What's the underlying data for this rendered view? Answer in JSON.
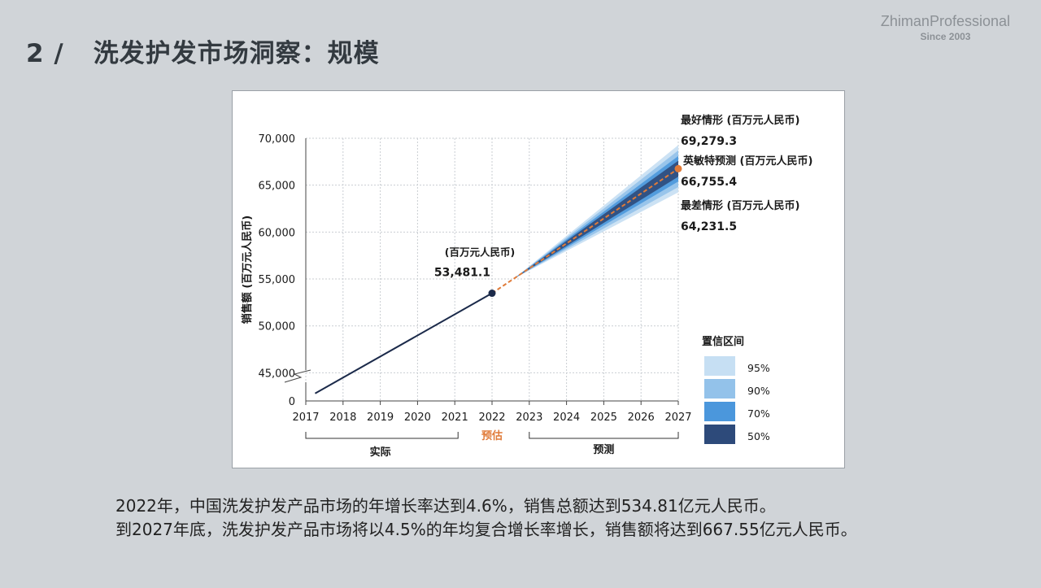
{
  "header": {
    "section_number": "2 /",
    "title": "洗发护发市场洞察：规模"
  },
  "brand": {
    "name": "ZhimanProfessional",
    "since": "Since 2003"
  },
  "chart_data": {
    "type": "line",
    "ylabel": "销售额 (百万元人民币)",
    "x": [
      2017,
      2018,
      2019,
      2020,
      2021,
      2022,
      2023,
      2024,
      2025,
      2026,
      2027
    ],
    "x_tick_labels": [
      "2017",
      "2018",
      "2019",
      "2020",
      "2021",
      "2022",
      "2023",
      "2024",
      "2025",
      "2026",
      "2027"
    ],
    "y_tick_labels": [
      "70,000",
      "65,000",
      "60,000",
      "55,000",
      "50,000",
      "45,000",
      "0"
    ],
    "y_ticks": [
      70000,
      65000,
      60000,
      55000,
      50000,
      45000
    ],
    "y_zero_label": "0",
    "ylim": [
      42000,
      70000
    ],
    "axis_break": true,
    "series": [
      {
        "role": "actual",
        "color": "#1b2a4a",
        "x": [
          2017.25,
          2022
        ],
        "y": [
          42800,
          53481.1
        ]
      },
      {
        "role": "forecast",
        "color": "#e07b39",
        "x": [
          2022,
          2027
        ],
        "y": [
          53481.1,
          66755.4
        ]
      }
    ],
    "confidence_interval": {
      "title": "置信区间",
      "levels": [
        {
          "label": "95%",
          "color": "#c6dff3",
          "lower_2027": 64231.5,
          "upper_2027": 69279.3
        },
        {
          "label": "90%",
          "color": "#93c2ea",
          "lower_2027": 64800,
          "upper_2027": 68700
        },
        {
          "label": "70%",
          "color": "#4b97dc",
          "lower_2027": 65400,
          "upper_2027": 68100
        },
        {
          "label": "50%",
          "color": "#2d4a7a",
          "lower_2027": 65900,
          "upper_2027": 67600
        }
      ],
      "start_x": 2022.6
    },
    "annotations": {
      "point_2022": {
        "unit": "(百万元人民币)",
        "value": "53,481.1"
      },
      "best": {
        "label": "最好情形 (百万元人民币)",
        "value": "69,279.3"
      },
      "forecast": {
        "label": "英敏特预测 (百万元人民币)",
        "value": "66,755.4"
      },
      "worst": {
        "label": "最差情形 (百万元人民币)",
        "value": "64,231.5"
      }
    },
    "x_groups": {
      "actual": "实际",
      "estimate": "预估",
      "forecast": "预测"
    },
    "estimate_color": "#e07b39"
  },
  "summary": {
    "line1": "2022年，中国洗发护发产品市场的年增长率达到4.6%，销售总额达到534.81亿元人民币。",
    "line2": "到2027年底，洗发护发产品市场将以4.5%的年均复合增长率增长，销售额将达到667.55亿元人民币。"
  }
}
